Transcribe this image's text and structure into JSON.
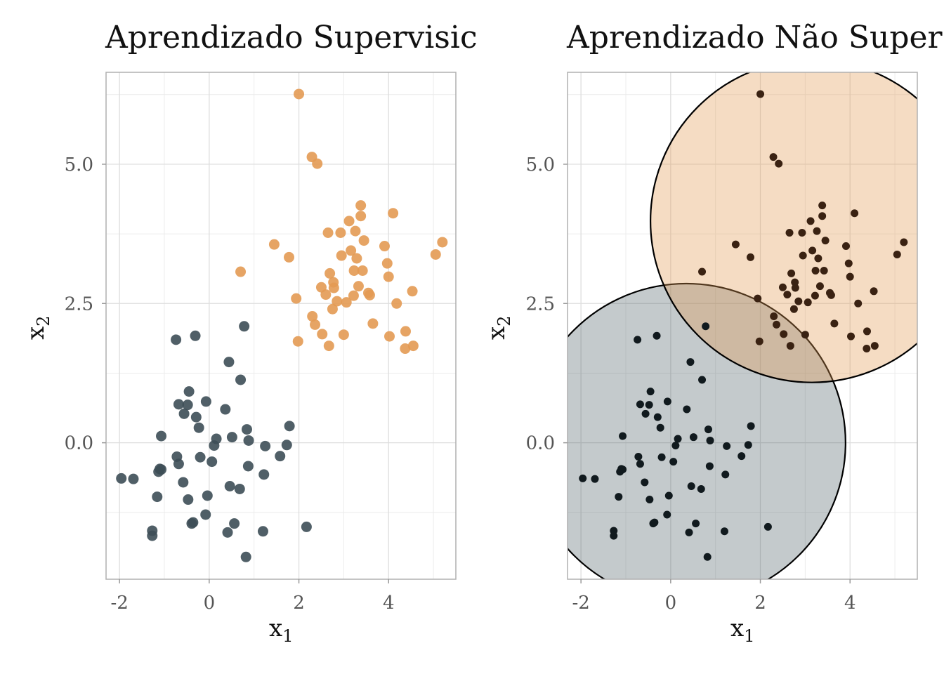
{
  "chart_data": [
    {
      "type": "scatter",
      "title": "Aprendizado Supervisic",
      "xlabel": "x",
      "xlabel_sub": "1",
      "ylabel": "x",
      "ylabel_sub": "2",
      "xlim": [
        -2.3,
        5.5
      ],
      "ylim": [
        -2.45,
        6.65
      ],
      "xticks": [
        -2,
        0,
        2,
        4
      ],
      "xtick_labels": [
        "-2",
        "0",
        "2",
        "4"
      ],
      "yticks": [
        0,
        2.5,
        5
      ],
      "ytick_labels": [
        "0.0",
        "2.5",
        "5.0"
      ],
      "grid": true,
      "legend": "none",
      "series": [
        {
          "color": "#3d4e56",
          "points": [
            [
              -1.96,
              -0.64
            ],
            [
              -1.69,
              -0.65
            ],
            [
              -1.27,
              -1.58
            ],
            [
              -1.27,
              -1.67
            ],
            [
              -1.16,
              -0.97
            ],
            [
              -1.13,
              -0.52
            ],
            [
              -1.07,
              -0.48
            ],
            [
              -1.07,
              0.12
            ],
            [
              -0.72,
              -0.25
            ],
            [
              -0.68,
              -0.38
            ],
            [
              -0.68,
              0.69
            ],
            [
              -0.58,
              -0.71
            ],
            [
              -0.56,
              0.52
            ],
            [
              -0.48,
              0.68
            ],
            [
              -0.47,
              -1.02
            ],
            [
              -0.45,
              0.92
            ],
            [
              -0.39,
              -1.45
            ],
            [
              -0.36,
              -1.43
            ],
            [
              -0.29,
              0.46
            ],
            [
              -0.23,
              0.27
            ],
            [
              -0.2,
              -0.26
            ],
            [
              -0.08,
              -1.29
            ],
            [
              -0.07,
              0.74
            ],
            [
              -0.04,
              -0.95
            ],
            [
              0.06,
              -0.34
            ],
            [
              0.11,
              -0.05
            ],
            [
              0.16,
              0.07
            ],
            [
              0.36,
              0.6
            ],
            [
              0.41,
              -1.61
            ],
            [
              0.44,
              1.45
            ],
            [
              0.46,
              -0.78
            ],
            [
              0.51,
              0.1
            ],
            [
              0.56,
              -1.45
            ],
            [
              0.68,
              -0.83
            ],
            [
              0.7,
              1.13
            ],
            [
              0.78,
              2.09
            ],
            [
              0.82,
              -2.05
            ],
            [
              0.84,
              0.24
            ],
            [
              0.87,
              -0.42
            ],
            [
              0.88,
              0.04
            ],
            [
              1.2,
              -1.59
            ],
            [
              1.22,
              -0.57
            ],
            [
              1.25,
              -0.06
            ],
            [
              1.58,
              -0.24
            ],
            [
              1.73,
              -0.04
            ],
            [
              1.79,
              0.3
            ],
            [
              2.17,
              -1.51
            ],
            [
              -0.74,
              1.85
            ],
            [
              -0.31,
              1.92
            ],
            [
              -1.1,
              -0.47
            ]
          ]
        },
        {
          "color": "#e39a53",
          "points": [
            [
              0.7,
              3.07
            ],
            [
              1.45,
              3.56
            ],
            [
              1.78,
              3.33
            ],
            [
              1.94,
              2.59
            ],
            [
              1.98,
              1.82
            ],
            [
              2.0,
              6.26
            ],
            [
              2.29,
              5.13
            ],
            [
              2.3,
              2.27
            ],
            [
              2.36,
              2.12
            ],
            [
              2.41,
              5.01
            ],
            [
              2.5,
              2.79
            ],
            [
              2.52,
              1.95
            ],
            [
              2.6,
              2.66
            ],
            [
              2.65,
              3.77
            ],
            [
              2.67,
              1.74
            ],
            [
              2.69,
              3.04
            ],
            [
              2.75,
              2.4
            ],
            [
              2.77,
              2.88
            ],
            [
              2.78,
              2.78
            ],
            [
              2.85,
              2.54
            ],
            [
              2.93,
              3.77
            ],
            [
              2.95,
              3.36
            ],
            [
              3.0,
              1.94
            ],
            [
              3.06,
              2.52
            ],
            [
              3.12,
              3.98
            ],
            [
              3.16,
              3.45
            ],
            [
              3.22,
              2.64
            ],
            [
              3.23,
              3.09
            ],
            [
              3.26,
              3.8
            ],
            [
              3.29,
              3.31
            ],
            [
              3.33,
              2.81
            ],
            [
              3.38,
              4.26
            ],
            [
              3.38,
              4.07
            ],
            [
              3.42,
              3.09
            ],
            [
              3.45,
              3.63
            ],
            [
              3.55,
              2.69
            ],
            [
              3.58,
              2.65
            ],
            [
              3.65,
              2.14
            ],
            [
              3.91,
              3.53
            ],
            [
              3.97,
              3.22
            ],
            [
              4.0,
              2.98
            ],
            [
              4.02,
              1.91
            ],
            [
              4.1,
              4.12
            ],
            [
              4.18,
              2.5
            ],
            [
              4.37,
              1.69
            ],
            [
              4.38,
              2.0
            ],
            [
              4.53,
              2.72
            ],
            [
              4.55,
              1.74
            ],
            [
              5.05,
              3.38
            ],
            [
              5.2,
              3.6
            ]
          ]
        }
      ]
    },
    {
      "type": "scatter",
      "title": "Aprendizado Não Super",
      "xlabel": "x",
      "xlabel_sub": "1",
      "ylabel": "x",
      "ylabel_sub": "2",
      "xlim": [
        -2.3,
        5.5
      ],
      "ylim": [
        -2.45,
        6.65
      ],
      "xticks": [
        -2,
        0,
        2,
        4
      ],
      "xtick_labels": [
        "-2",
        "0",
        "2",
        "4"
      ],
      "yticks": [
        0,
        2.5,
        5
      ],
      "ytick_labels": [
        "0.0",
        "2.5",
        "5.0"
      ],
      "grid": true,
      "legend": "none",
      "point_colors": [
        "#111a1e",
        "#3a2212"
      ],
      "clusters": [
        {
          "center": [
            0.35,
            0.0
          ],
          "radius": 3.55,
          "fill": "#3d4e56",
          "fill_opacity": 0.3
        },
        {
          "center": [
            3.15,
            3.98
          ],
          "radius": 3.6,
          "fill": "#e39a53",
          "fill_opacity": 0.35
        }
      ]
    }
  ]
}
